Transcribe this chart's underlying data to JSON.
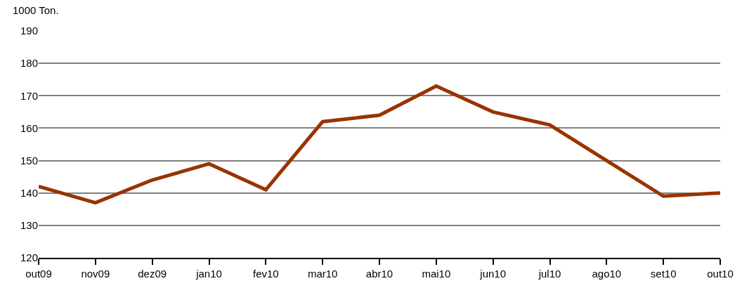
{
  "chart_data": {
    "type": "line",
    "ylabel": "1000 Ton.",
    "categories": [
      "out09",
      "nov09",
      "dez09",
      "jan10",
      "fev10",
      "mar10",
      "abr10",
      "mai10",
      "jun10",
      "jul10",
      "ago10",
      "set10",
      "out10"
    ],
    "series": [
      {
        "color": "#993300",
        "values": [
          142,
          137,
          144,
          149,
          141,
          162,
          164,
          173,
          165,
          161,
          150,
          139,
          140
        ]
      }
    ],
    "ylim": [
      120,
      190
    ],
    "yticks": [
      120,
      130,
      140,
      150,
      160,
      170,
      180,
      190
    ],
    "grid": "y",
    "legend": false,
    "marker": "none",
    "line_style": "solid"
  }
}
